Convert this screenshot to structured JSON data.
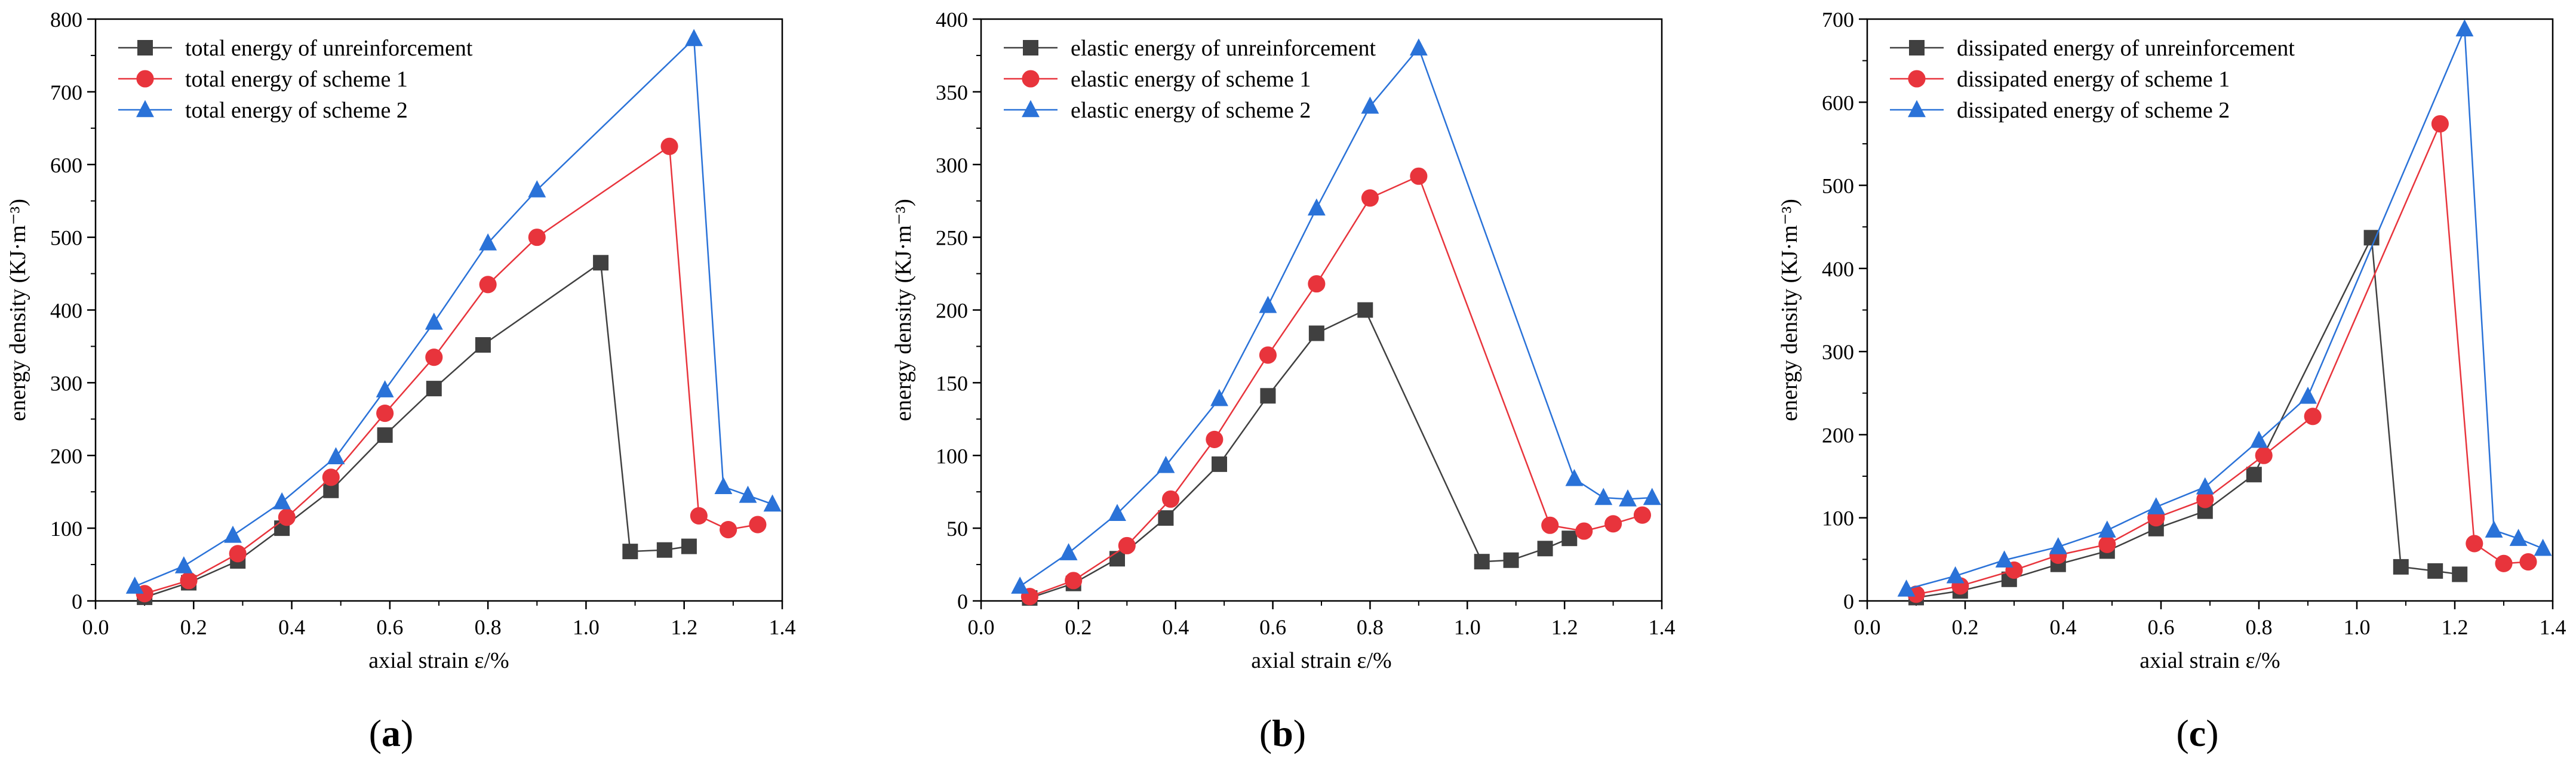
{
  "figure": {
    "panel_labels": [
      "(a)",
      "(b)",
      "(c)"
    ],
    "series_colors": [
      "#404040",
      "#e8343c",
      "#2a72d8"
    ],
    "series_markers": [
      "square",
      "circle",
      "triangle"
    ]
  },
  "chart_data": [
    {
      "type": "line",
      "panel": "(a)",
      "xlabel": "axial strain  ε/%",
      "ylabel": "energy density  (KJ·m⁻³)",
      "xlim": [
        0.0,
        1.4
      ],
      "ylim": [
        0,
        800
      ],
      "xticks": [
        0.0,
        0.2,
        0.4,
        0.6,
        0.8,
        1.0,
        1.2,
        1.4
      ],
      "xtick_labels": [
        "0.0",
        "0.2",
        "0.4",
        "0.6",
        "0.8",
        "1.0",
        "1.2",
        "1.4"
      ],
      "yticks": [
        0,
        100,
        200,
        300,
        400,
        500,
        600,
        700,
        800
      ],
      "ytick_labels": [
        "0",
        "100",
        "200",
        "300",
        "400",
        "500",
        "600",
        "700",
        "800"
      ],
      "legend_position": "top-left",
      "series": [
        {
          "name": "total energy of unreinforcement",
          "marker": "square",
          "color": "#404040",
          "x": [
            0.1,
            0.19,
            0.29,
            0.38,
            0.48,
            0.59,
            0.69,
            0.79,
            1.03,
            1.09,
            1.16,
            1.21
          ],
          "y": [
            5,
            25,
            55,
            100,
            152,
            228,
            292,
            352,
            465,
            68,
            70,
            75
          ]
        },
        {
          "name": "total energy of scheme 1",
          "marker": "circle",
          "color": "#e8343c",
          "x": [
            0.1,
            0.19,
            0.29,
            0.39,
            0.48,
            0.59,
            0.69,
            0.8,
            0.9,
            1.17,
            1.23,
            1.29,
            1.35
          ],
          "y": [
            10,
            28,
            65,
            115,
            170,
            258,
            335,
            435,
            500,
            625,
            117,
            98,
            105
          ]
        },
        {
          "name": "total energy of scheme 2",
          "marker": "triangle",
          "color": "#2a72d8",
          "x": [
            0.08,
            0.18,
            0.28,
            0.38,
            0.49,
            0.59,
            0.69,
            0.8,
            0.9,
            1.22,
            1.28,
            1.33,
            1.38
          ],
          "y": [
            20,
            48,
            90,
            136,
            198,
            290,
            383,
            492,
            565,
            773,
            157,
            145,
            133
          ]
        }
      ]
    },
    {
      "type": "line",
      "panel": "(b)",
      "xlabel": "axial strain  ε/%",
      "ylabel": "energy density  (KJ·m⁻³)",
      "xlim": [
        0.0,
        1.4
      ],
      "ylim": [
        0,
        400
      ],
      "xticks": [
        0.0,
        0.2,
        0.4,
        0.6,
        0.8,
        1.0,
        1.2,
        1.4
      ],
      "xtick_labels": [
        "0.0",
        "0.2",
        "0.4",
        "0.6",
        "0.8",
        "1.0",
        "1.2",
        "1.4"
      ],
      "yticks": [
        0,
        50,
        100,
        150,
        200,
        250,
        300,
        350,
        400
      ],
      "ytick_labels": [
        "0",
        "50",
        "100",
        "150",
        "200",
        "250",
        "300",
        "350",
        "400"
      ],
      "legend_position": "top-left",
      "series": [
        {
          "name": "elastic energy of unreinforcement",
          "marker": "square",
          "color": "#404040",
          "x": [
            0.1,
            0.19,
            0.28,
            0.38,
            0.49,
            0.59,
            0.69,
            0.79,
            1.03,
            1.09,
            1.16,
            1.21
          ],
          "y": [
            2,
            12,
            29,
            57,
            94,
            141,
            184,
            200,
            27,
            28,
            36,
            43
          ]
        },
        {
          "name": "elastic energy of scheme 1",
          "marker": "circle",
          "color": "#e8343c",
          "x": [
            0.1,
            0.19,
            0.3,
            0.39,
            0.48,
            0.59,
            0.69,
            0.8,
            0.9,
            1.17,
            1.24,
            1.3,
            1.36
          ],
          "y": [
            3,
            14,
            38,
            70,
            111,
            169,
            218,
            277,
            292,
            52,
            48,
            53,
            59
          ]
        },
        {
          "name": "elastic energy of scheme 2",
          "marker": "triangle",
          "color": "#2a72d8",
          "x": [
            0.08,
            0.18,
            0.28,
            0.38,
            0.49,
            0.59,
            0.69,
            0.8,
            0.9,
            1.22,
            1.28,
            1.33,
            1.38
          ],
          "y": [
            10,
            33,
            60,
            93,
            139,
            203,
            270,
            340,
            380,
            84,
            71,
            70,
            71
          ]
        }
      ]
    },
    {
      "type": "line",
      "panel": "(c)",
      "xlabel": "axial strain  ε/%",
      "ylabel": "energy density  (KJ·m⁻³)",
      "xlim": [
        0.0,
        1.4
      ],
      "ylim": [
        0,
        700
      ],
      "xticks": [
        0.0,
        0.2,
        0.4,
        0.6,
        0.8,
        1.0,
        1.2,
        1.4
      ],
      "xtick_labels": [
        "0.0",
        "0.2",
        "0.4",
        "0.6",
        "0.8",
        "1.0",
        "1.2",
        "1.4"
      ],
      "yticks": [
        0,
        100,
        200,
        300,
        400,
        500,
        600,
        700
      ],
      "ytick_labels": [
        "0",
        "100",
        "200",
        "300",
        "400",
        "500",
        "600",
        "700"
      ],
      "legend_position": "top-left",
      "series": [
        {
          "name": "dissipated  energy of unreinforcement",
          "marker": "square",
          "color": "#404040",
          "x": [
            0.1,
            0.19,
            0.29,
            0.39,
            0.49,
            0.59,
            0.69,
            0.79,
            1.03,
            1.09,
            1.16,
            1.21
          ],
          "y": [
            4,
            12,
            26,
            44,
            60,
            87,
            108,
            152,
            437,
            41,
            36,
            32
          ]
        },
        {
          "name": "dissipated  energy of scheme 1",
          "marker": "circle",
          "color": "#e8343c",
          "x": [
            0.1,
            0.19,
            0.3,
            0.39,
            0.49,
            0.59,
            0.69,
            0.81,
            0.91,
            1.17,
            1.24,
            1.3,
            1.35
          ],
          "y": [
            8,
            18,
            37,
            55,
            68,
            100,
            122,
            175,
            222,
            574,
            69,
            45,
            47
          ]
        },
        {
          "name": "dissipated  energy of scheme 2",
          "marker": "triangle",
          "color": "#2a72d8",
          "x": [
            0.08,
            0.18,
            0.28,
            0.39,
            0.49,
            0.59,
            0.69,
            0.8,
            0.9,
            1.22,
            1.28,
            1.33,
            1.38
          ],
          "y": [
            14,
            30,
            49,
            65,
            85,
            113,
            137,
            193,
            246,
            688,
            85,
            75,
            63
          ]
        }
      ]
    }
  ]
}
